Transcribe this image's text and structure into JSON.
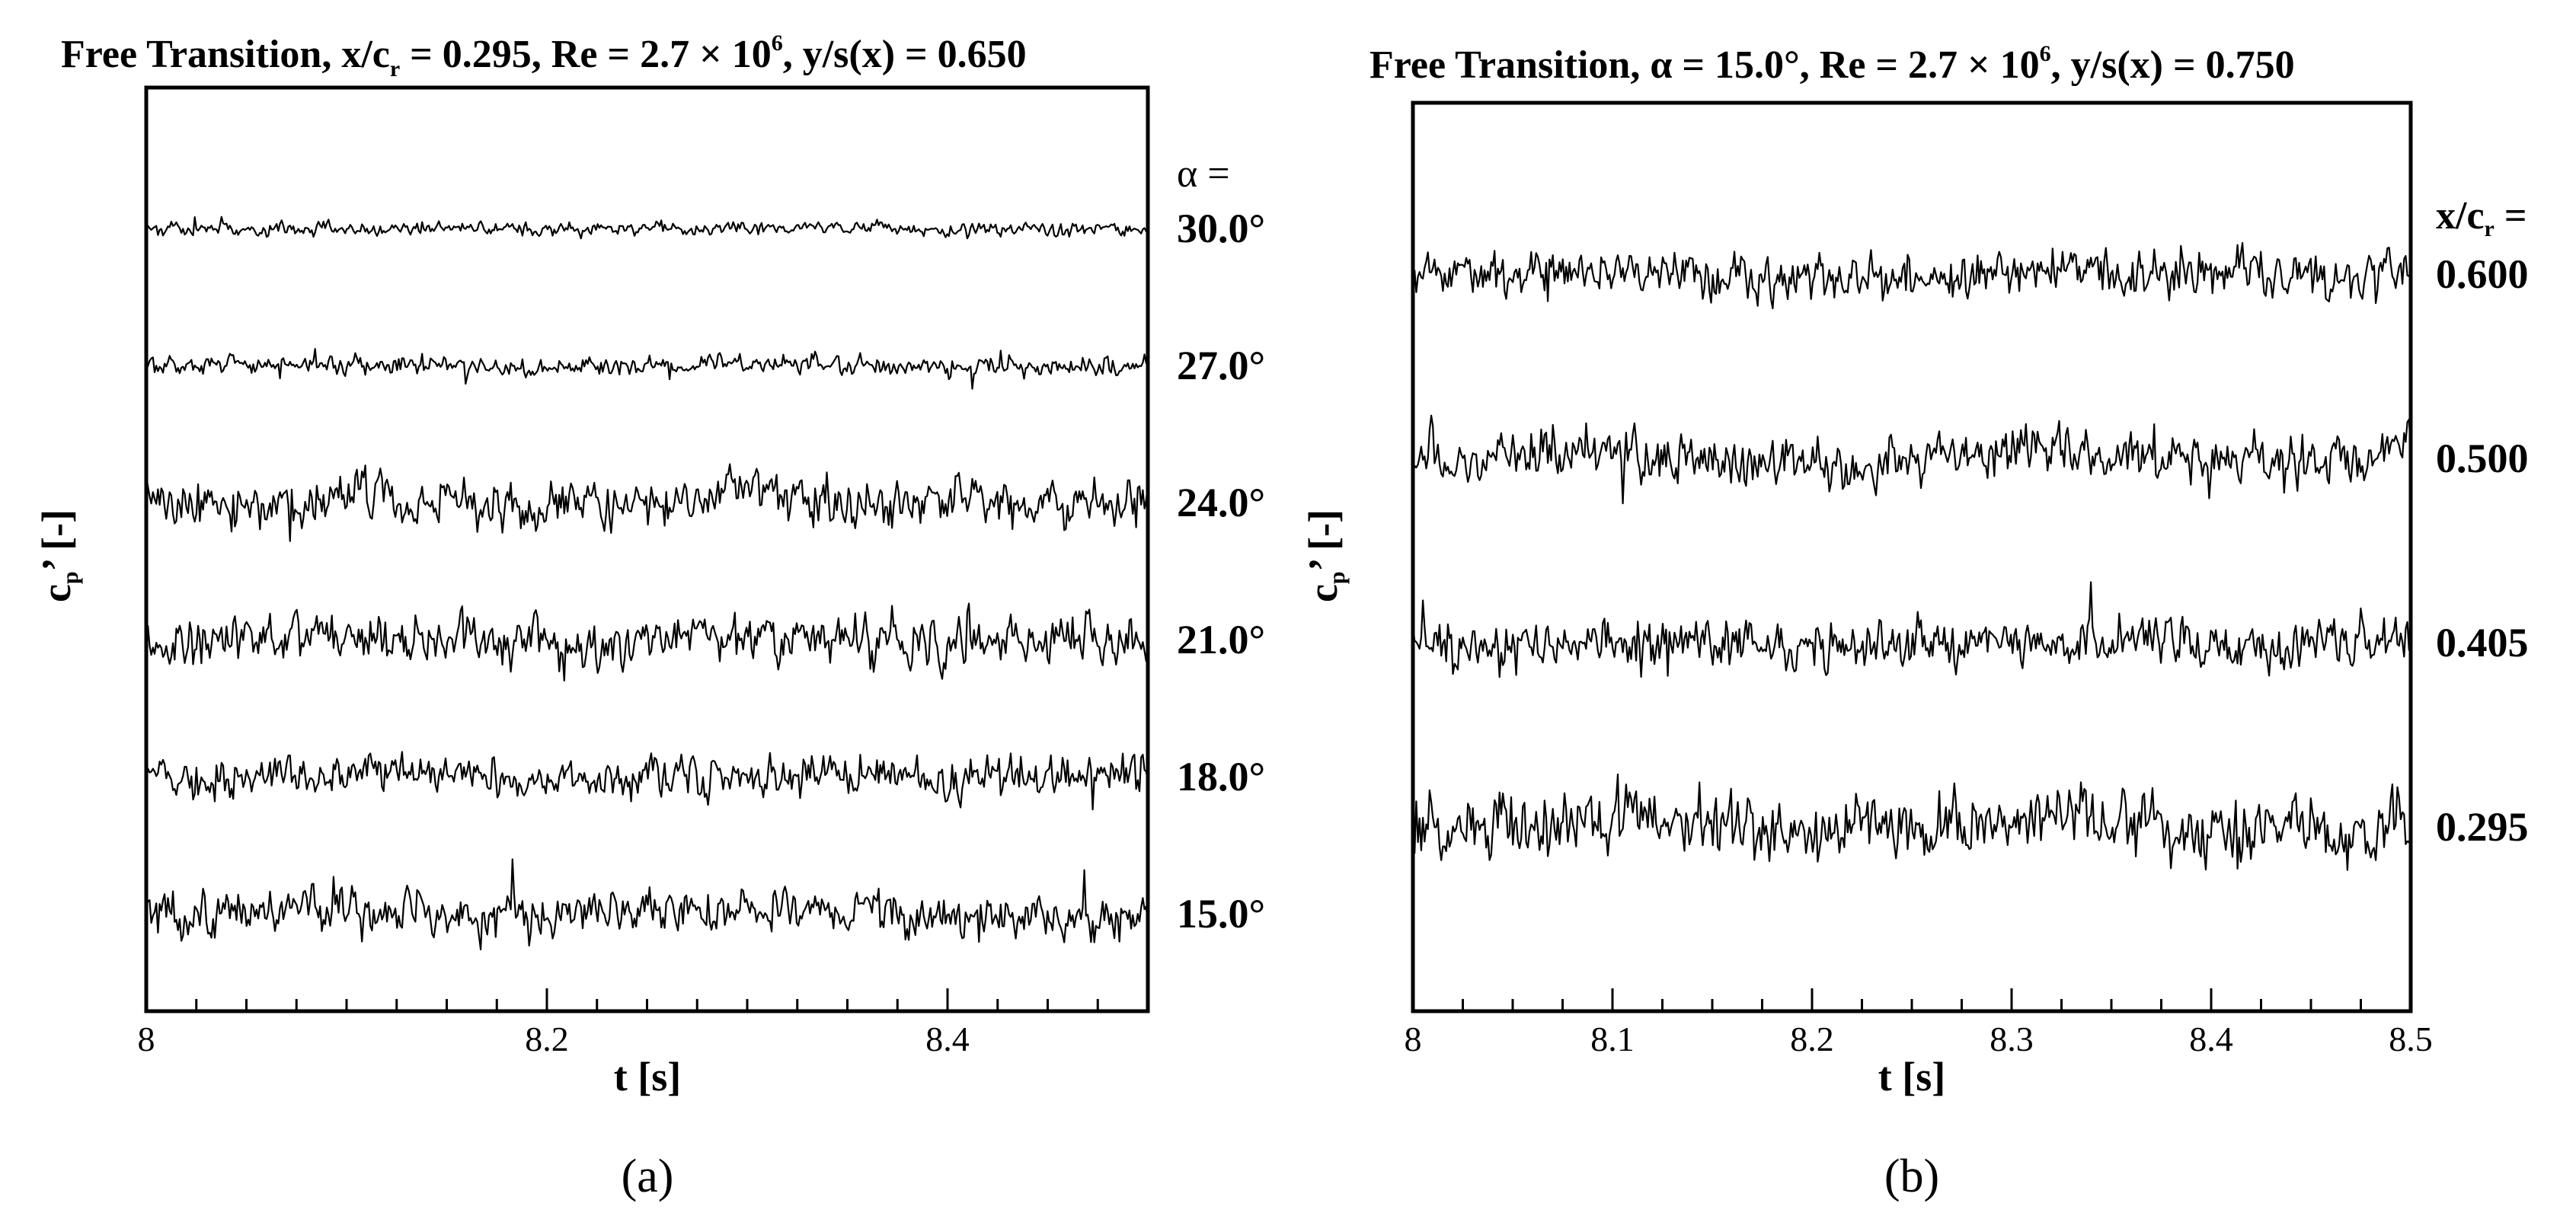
{
  "chart_data": [
    {
      "type": "line",
      "panel_label": "(a)",
      "title": {
        "prefix": "Free Transition, x/c",
        "sub": "r",
        "mid": " = 0.295, Re = 2.7 × 10",
        "sup": "6",
        "suffix": ", y/s(x) = 0.650"
      },
      "xlabel": "t [s]",
      "ylabel": "c",
      "ylabel_sub": "p",
      "ylabel_suffix": "’ [-]",
      "xlim": [
        8,
        8.5
      ],
      "x_ticks": [
        "8",
        "8.2",
        "8.4"
      ],
      "case_header": "α =",
      "legend_placement": "right",
      "series": [
        {
          "label": "30.0°",
          "amplitude": 0.25,
          "seed": 11
        },
        {
          "label": "27.0°",
          "amplitude": 0.35,
          "seed": 23
        },
        {
          "label": "24.0°",
          "amplitude": 0.9,
          "seed": 37
        },
        {
          "label": "21.0°",
          "amplitude": 0.85,
          "seed": 41
        },
        {
          "label": "18.0°",
          "amplitude": 0.75,
          "seed": 53
        },
        {
          "label": "15.0°",
          "amplitude": 0.8,
          "seed": 67
        }
      ]
    },
    {
      "type": "line",
      "panel_label": "(b)",
      "title": {
        "prefix": "Free Transition, α = 15.0°, Re = 2.7 × 10",
        "sup": "6",
        "suffix": ", y/s(x) = 0.750"
      },
      "xlabel": "t [s]",
      "ylabel": "c",
      "ylabel_sub": "p",
      "ylabel_suffix": "’ [-]",
      "xlim": [
        8,
        8.5
      ],
      "x_ticks": [
        "8",
        "8.1",
        "8.2",
        "8.3",
        "8.4",
        "8.5"
      ],
      "case_header": "x/c",
      "case_header_sub": "r",
      "case_header_suffix": " =",
      "legend_placement": "right",
      "series": [
        {
          "label": "0.600",
          "amplitude": 0.85,
          "seed": 79
        },
        {
          "label": "0.500",
          "amplitude": 0.95,
          "seed": 83
        },
        {
          "label": "0.405",
          "amplitude": 0.9,
          "seed": 97
        },
        {
          "label": "0.295",
          "amplitude": 1.2,
          "seed": 101
        }
      ]
    }
  ]
}
